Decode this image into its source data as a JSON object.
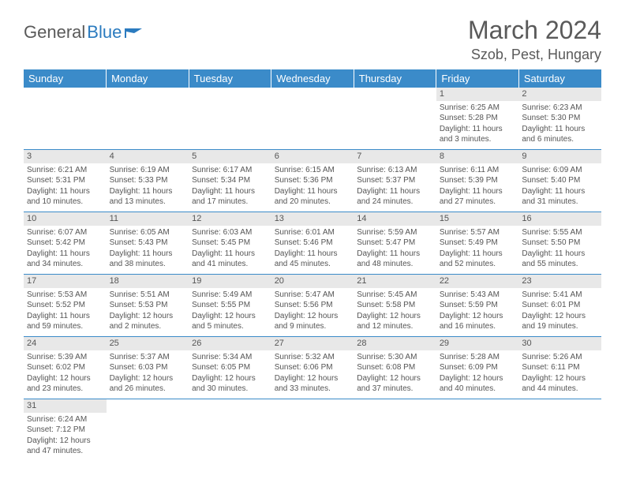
{
  "logo": {
    "text1": "General",
    "text2": "Blue"
  },
  "title": "March 2024",
  "location": "Szob, Pest, Hungary",
  "weekdays": [
    "Sunday",
    "Monday",
    "Tuesday",
    "Wednesday",
    "Thursday",
    "Friday",
    "Saturday"
  ],
  "colors": {
    "header_bg": "#3b8bc9",
    "header_text": "#ffffff",
    "daynum_bg": "#e8e8e8",
    "border": "#3b8bc9",
    "text": "#555555",
    "logo_blue": "#2b7bbf"
  },
  "rows": [
    [
      {
        "day": "",
        "lines": []
      },
      {
        "day": "",
        "lines": []
      },
      {
        "day": "",
        "lines": []
      },
      {
        "day": "",
        "lines": []
      },
      {
        "day": "",
        "lines": []
      },
      {
        "day": "1",
        "lines": [
          "Sunrise: 6:25 AM",
          "Sunset: 5:28 PM",
          "Daylight: 11 hours",
          "and 3 minutes."
        ]
      },
      {
        "day": "2",
        "lines": [
          "Sunrise: 6:23 AM",
          "Sunset: 5:30 PM",
          "Daylight: 11 hours",
          "and 6 minutes."
        ]
      }
    ],
    [
      {
        "day": "3",
        "lines": [
          "Sunrise: 6:21 AM",
          "Sunset: 5:31 PM",
          "Daylight: 11 hours",
          "and 10 minutes."
        ]
      },
      {
        "day": "4",
        "lines": [
          "Sunrise: 6:19 AM",
          "Sunset: 5:33 PM",
          "Daylight: 11 hours",
          "and 13 minutes."
        ]
      },
      {
        "day": "5",
        "lines": [
          "Sunrise: 6:17 AM",
          "Sunset: 5:34 PM",
          "Daylight: 11 hours",
          "and 17 minutes."
        ]
      },
      {
        "day": "6",
        "lines": [
          "Sunrise: 6:15 AM",
          "Sunset: 5:36 PM",
          "Daylight: 11 hours",
          "and 20 minutes."
        ]
      },
      {
        "day": "7",
        "lines": [
          "Sunrise: 6:13 AM",
          "Sunset: 5:37 PM",
          "Daylight: 11 hours",
          "and 24 minutes."
        ]
      },
      {
        "day": "8",
        "lines": [
          "Sunrise: 6:11 AM",
          "Sunset: 5:39 PM",
          "Daylight: 11 hours",
          "and 27 minutes."
        ]
      },
      {
        "day": "9",
        "lines": [
          "Sunrise: 6:09 AM",
          "Sunset: 5:40 PM",
          "Daylight: 11 hours",
          "and 31 minutes."
        ]
      }
    ],
    [
      {
        "day": "10",
        "lines": [
          "Sunrise: 6:07 AM",
          "Sunset: 5:42 PM",
          "Daylight: 11 hours",
          "and 34 minutes."
        ]
      },
      {
        "day": "11",
        "lines": [
          "Sunrise: 6:05 AM",
          "Sunset: 5:43 PM",
          "Daylight: 11 hours",
          "and 38 minutes."
        ]
      },
      {
        "day": "12",
        "lines": [
          "Sunrise: 6:03 AM",
          "Sunset: 5:45 PM",
          "Daylight: 11 hours",
          "and 41 minutes."
        ]
      },
      {
        "day": "13",
        "lines": [
          "Sunrise: 6:01 AM",
          "Sunset: 5:46 PM",
          "Daylight: 11 hours",
          "and 45 minutes."
        ]
      },
      {
        "day": "14",
        "lines": [
          "Sunrise: 5:59 AM",
          "Sunset: 5:47 PM",
          "Daylight: 11 hours",
          "and 48 minutes."
        ]
      },
      {
        "day": "15",
        "lines": [
          "Sunrise: 5:57 AM",
          "Sunset: 5:49 PM",
          "Daylight: 11 hours",
          "and 52 minutes."
        ]
      },
      {
        "day": "16",
        "lines": [
          "Sunrise: 5:55 AM",
          "Sunset: 5:50 PM",
          "Daylight: 11 hours",
          "and 55 minutes."
        ]
      }
    ],
    [
      {
        "day": "17",
        "lines": [
          "Sunrise: 5:53 AM",
          "Sunset: 5:52 PM",
          "Daylight: 11 hours",
          "and 59 minutes."
        ]
      },
      {
        "day": "18",
        "lines": [
          "Sunrise: 5:51 AM",
          "Sunset: 5:53 PM",
          "Daylight: 12 hours",
          "and 2 minutes."
        ]
      },
      {
        "day": "19",
        "lines": [
          "Sunrise: 5:49 AM",
          "Sunset: 5:55 PM",
          "Daylight: 12 hours",
          "and 5 minutes."
        ]
      },
      {
        "day": "20",
        "lines": [
          "Sunrise: 5:47 AM",
          "Sunset: 5:56 PM",
          "Daylight: 12 hours",
          "and 9 minutes."
        ]
      },
      {
        "day": "21",
        "lines": [
          "Sunrise: 5:45 AM",
          "Sunset: 5:58 PM",
          "Daylight: 12 hours",
          "and 12 minutes."
        ]
      },
      {
        "day": "22",
        "lines": [
          "Sunrise: 5:43 AM",
          "Sunset: 5:59 PM",
          "Daylight: 12 hours",
          "and 16 minutes."
        ]
      },
      {
        "day": "23",
        "lines": [
          "Sunrise: 5:41 AM",
          "Sunset: 6:01 PM",
          "Daylight: 12 hours",
          "and 19 minutes."
        ]
      }
    ],
    [
      {
        "day": "24",
        "lines": [
          "Sunrise: 5:39 AM",
          "Sunset: 6:02 PM",
          "Daylight: 12 hours",
          "and 23 minutes."
        ]
      },
      {
        "day": "25",
        "lines": [
          "Sunrise: 5:37 AM",
          "Sunset: 6:03 PM",
          "Daylight: 12 hours",
          "and 26 minutes."
        ]
      },
      {
        "day": "26",
        "lines": [
          "Sunrise: 5:34 AM",
          "Sunset: 6:05 PM",
          "Daylight: 12 hours",
          "and 30 minutes."
        ]
      },
      {
        "day": "27",
        "lines": [
          "Sunrise: 5:32 AM",
          "Sunset: 6:06 PM",
          "Daylight: 12 hours",
          "and 33 minutes."
        ]
      },
      {
        "day": "28",
        "lines": [
          "Sunrise: 5:30 AM",
          "Sunset: 6:08 PM",
          "Daylight: 12 hours",
          "and 37 minutes."
        ]
      },
      {
        "day": "29",
        "lines": [
          "Sunrise: 5:28 AM",
          "Sunset: 6:09 PM",
          "Daylight: 12 hours",
          "and 40 minutes."
        ]
      },
      {
        "day": "30",
        "lines": [
          "Sunrise: 5:26 AM",
          "Sunset: 6:11 PM",
          "Daylight: 12 hours",
          "and 44 minutes."
        ]
      }
    ],
    [
      {
        "day": "31",
        "lines": [
          "Sunrise: 6:24 AM",
          "Sunset: 7:12 PM",
          "Daylight: 12 hours",
          "and 47 minutes."
        ]
      },
      {
        "day": "",
        "lines": []
      },
      {
        "day": "",
        "lines": []
      },
      {
        "day": "",
        "lines": []
      },
      {
        "day": "",
        "lines": []
      },
      {
        "day": "",
        "lines": []
      },
      {
        "day": "",
        "lines": []
      }
    ]
  ]
}
